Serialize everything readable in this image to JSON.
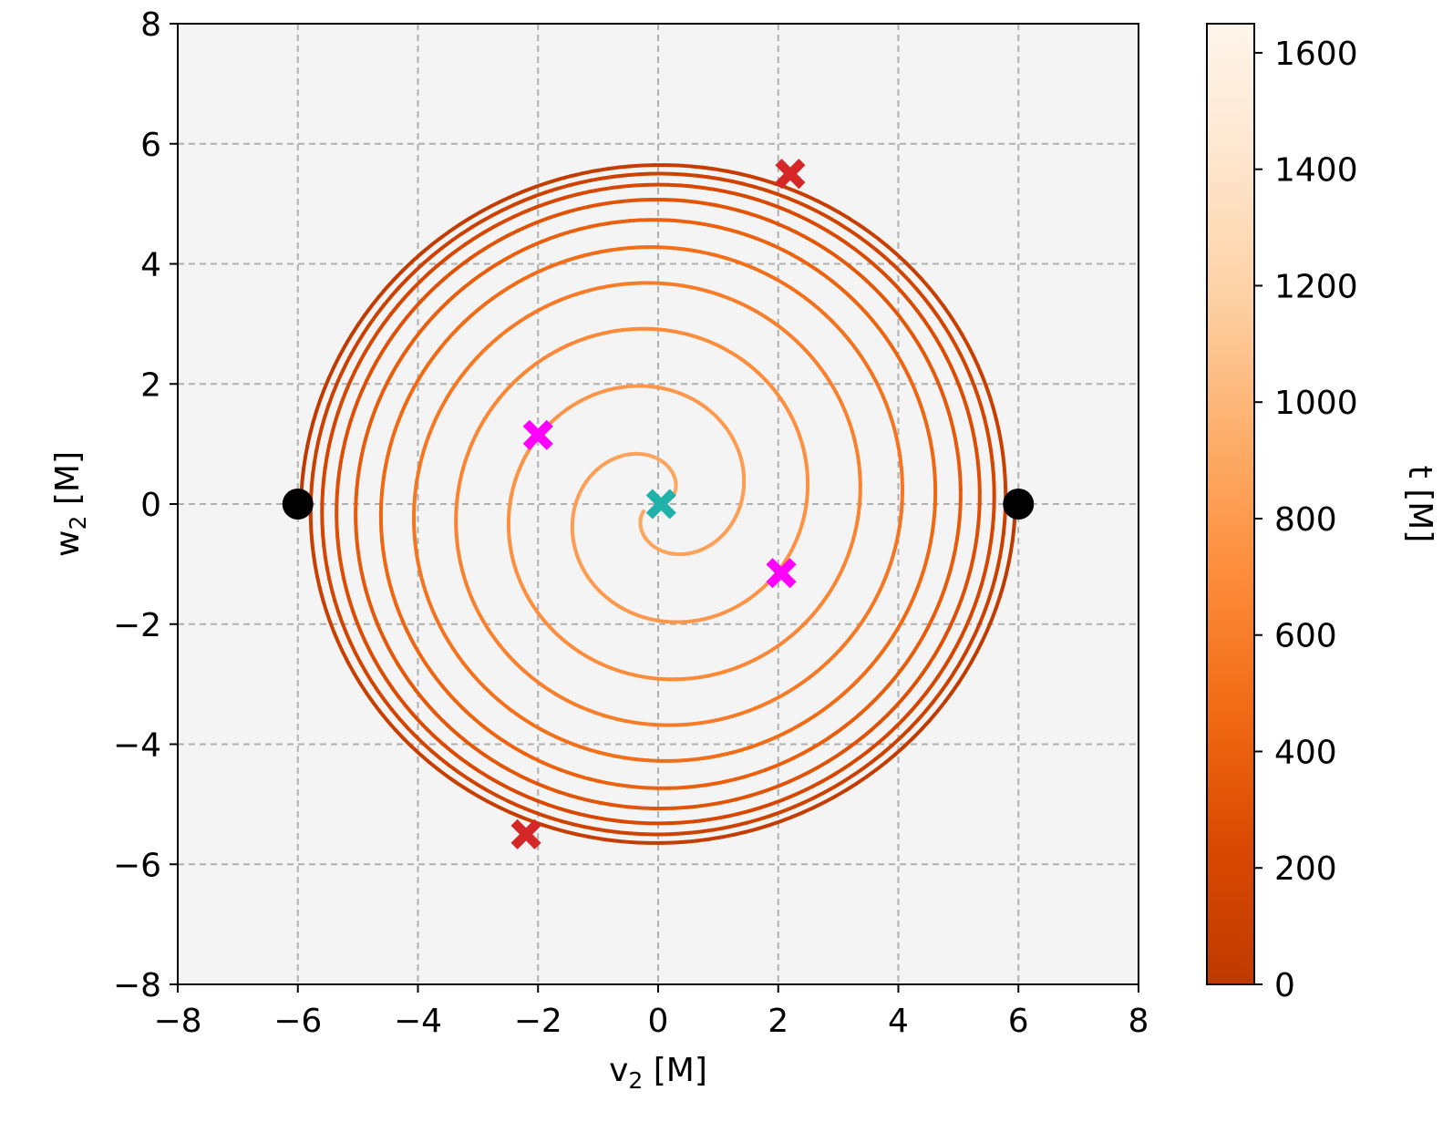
{
  "chart_data": {
    "type": "line",
    "xlabel_main": "v",
    "xlabel_sub": "2",
    "xlabel_unit": " [M]",
    "ylabel_main": "w",
    "ylabel_sub": "2",
    "ylabel_unit": " [M]",
    "xlim": [
      -8,
      8
    ],
    "ylim": [
      -8,
      8
    ],
    "xticks": [
      -8,
      -6,
      -4,
      -2,
      0,
      2,
      4,
      6,
      8
    ],
    "yticks": [
      -8,
      -6,
      -4,
      -2,
      0,
      2,
      4,
      6,
      8
    ],
    "x_tick_labels": [
      "−8",
      "−6",
      "−4",
      "−2",
      "0",
      "2",
      "4",
      "6",
      "8"
    ],
    "y_tick_labels": [
      "−8",
      "−6",
      "−4",
      "−2",
      "0",
      "2",
      "4",
      "6",
      "8"
    ],
    "grid": true,
    "grid_style": "dashed",
    "plot_background": "#f4f4f4",
    "colorbar": {
      "label": "t [M]",
      "range": [
        0,
        1650
      ],
      "ticks": [
        0,
        200,
        400,
        600,
        800,
        1000,
        1200,
        1400,
        1600
      ],
      "tick_labels": [
        "0",
        "200",
        "400",
        "600",
        "800",
        "1000",
        "1200",
        "1400",
        "1600"
      ],
      "colormap": "Oranges_r",
      "colors": [
        "#bf3a00",
        "#d94801",
        "#f16913",
        "#fd8d3c",
        "#fdae6b",
        "#fdd0a2",
        "#fee6ce",
        "#fff5eb"
      ]
    },
    "series": [
      {
        "description_ref": "trajectory of body 1 — spirals inward from (6, 0), colored by t",
        "start": [
          6,
          0
        ],
        "t_range": [
          0,
          920
        ]
      },
      {
        "description_ref": "trajectory of body 2 — spirals inward from (-6, 0), colored by t",
        "start": [
          -6,
          0
        ],
        "t_range": [
          0,
          920
        ]
      }
    ],
    "markers": [
      {
        "kind": "circle",
        "color": "#000000",
        "x": 6,
        "y": 0
      },
      {
        "kind": "circle",
        "color": "#000000",
        "x": -6,
        "y": 0
      },
      {
        "kind": "x",
        "color": "#d62728",
        "x": 2.2,
        "y": 5.5
      },
      {
        "kind": "x",
        "color": "#d62728",
        "x": -2.2,
        "y": -5.5
      },
      {
        "kind": "x",
        "color": "#ff00ff",
        "x": -2.0,
        "y": 1.15
      },
      {
        "kind": "x",
        "color": "#ff00ff",
        "x": 2.05,
        "y": -1.15
      },
      {
        "kind": "x",
        "color": "#20b2aa",
        "x": 0.05,
        "y": 0.0
      }
    ]
  }
}
